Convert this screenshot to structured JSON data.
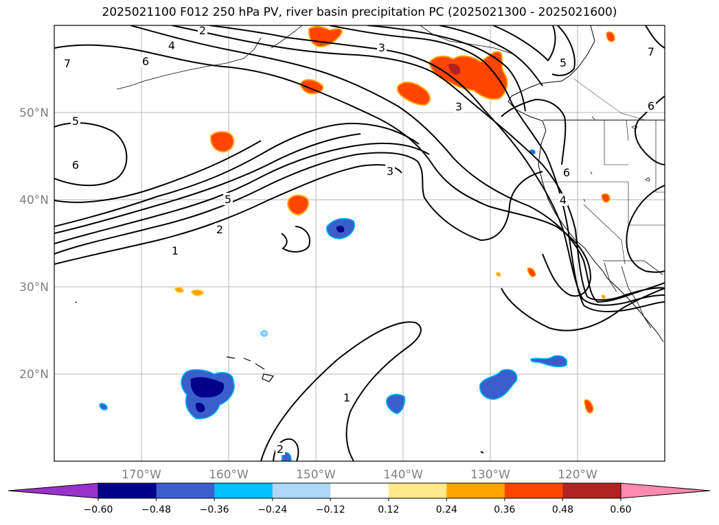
{
  "title": "2025021100 F012 250 hPa PV, river basin precipitation PC (2025021300 - 2025021600)",
  "map": {
    "projection": "PlateCarree",
    "extent": {
      "lon_min": -180,
      "lon_max": -110,
      "lat_min": 10,
      "lat_max": 60
    },
    "gridlines": true,
    "lat_labels": [
      "50°N",
      "40°N",
      "30°N",
      "20°N"
    ],
    "lon_labels": [
      "170°W",
      "160°W",
      "150°W",
      "140°W",
      "130°W",
      "120°W"
    ],
    "contour_field": "250 hPa PV",
    "contour_labels": [
      "2",
      "4",
      "3",
      "6",
      "7",
      "5",
      "6",
      "5",
      "3",
      "3",
      "5",
      "2",
      "1",
      "6",
      "4",
      "6",
      "7",
      "1",
      "2"
    ],
    "shaded_field": "river basin precipitation PC"
  },
  "colorbar": {
    "ticks": [
      "−0.60",
      "−0.48",
      "−0.36",
      "−0.24",
      "−0.12",
      "0.12",
      "0.24",
      "0.36",
      "0.48",
      "0.60"
    ],
    "colors": [
      "#9932cc",
      "#00008b",
      "#3a5fcd",
      "#00bfff",
      "#add8f6",
      "#ffffff",
      "#ffe98a",
      "#ffa500",
      "#ff4500",
      "#b22222",
      "#ff89b0"
    ]
  }
}
